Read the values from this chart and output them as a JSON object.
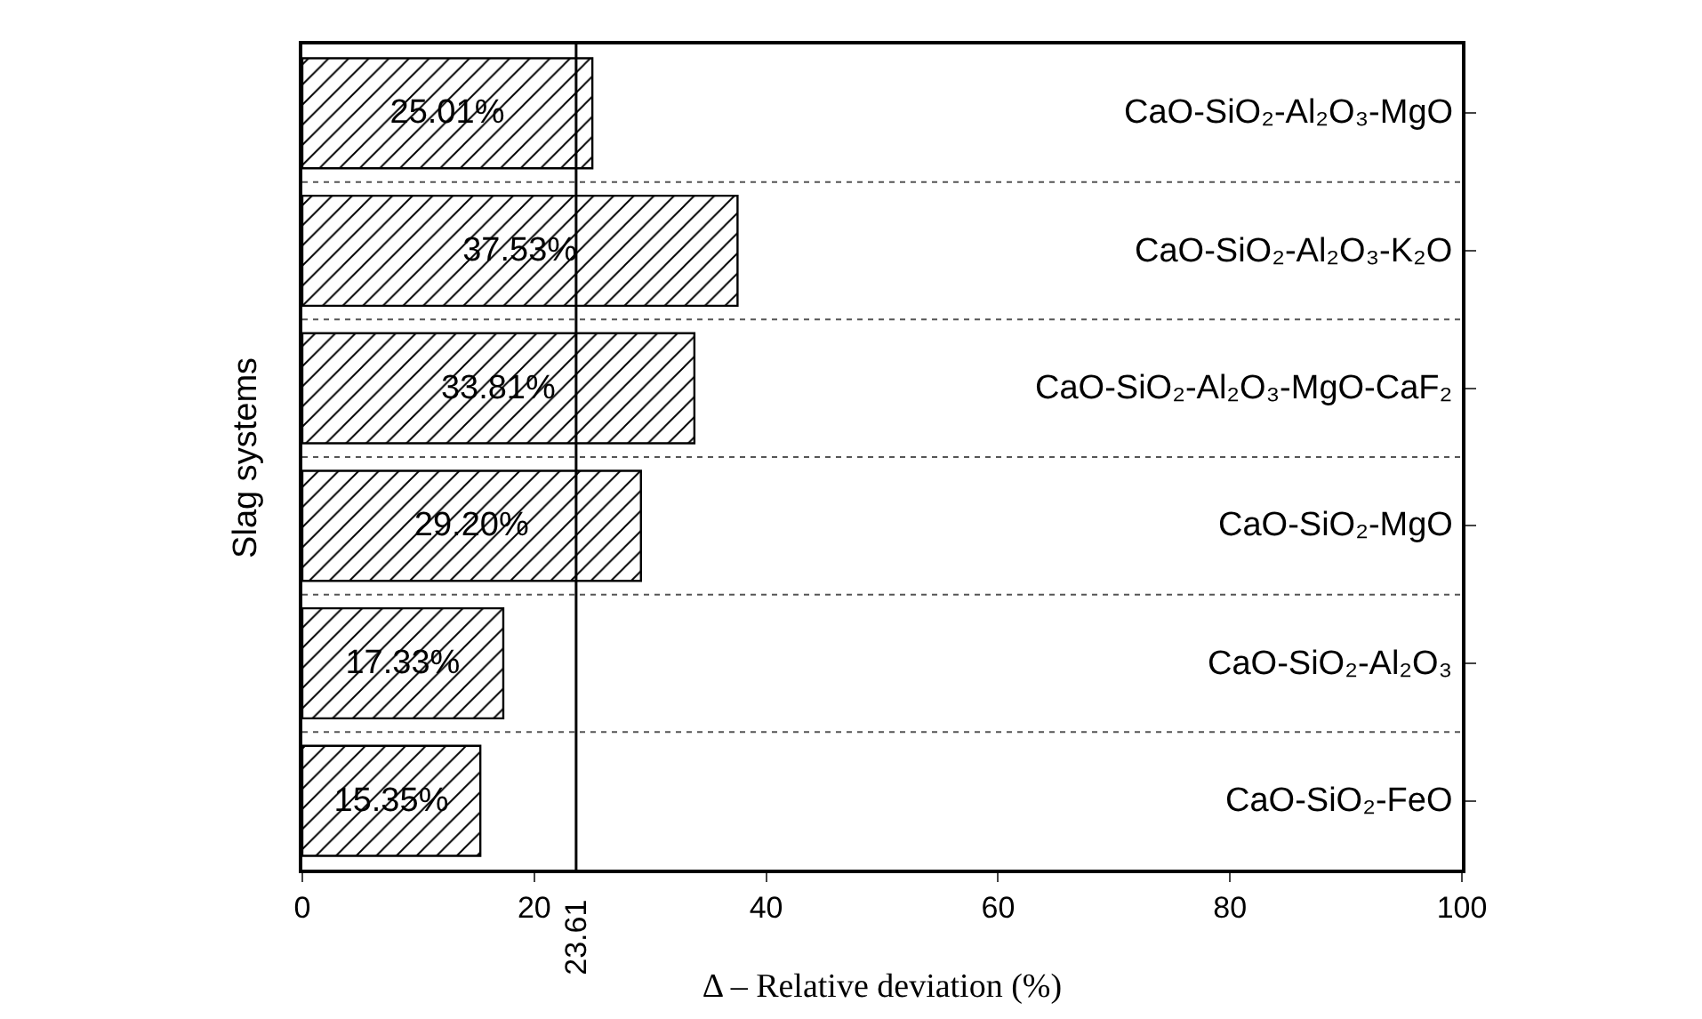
{
  "chart_data": {
    "type": "bar",
    "orientation": "horizontal",
    "xlabel": "Δ – Relative deviation (%)",
    "ylabel": "Slag systems",
    "categories": [
      "CaO-SiO₂-Al₂O₃-MgO",
      "CaO-SiO₂-Al₂O₃-K₂O",
      "CaO-SiO₂-Al₂O₃-MgO-CaF₂",
      "CaO-SiO₂-MgO",
      "CaO-SiO₂-Al₂O₃",
      "CaO-SiO₂-FeO"
    ],
    "values": [
      25.01,
      37.53,
      33.81,
      29.2,
      17.33,
      15.35
    ],
    "value_labels": [
      "25.01%",
      "37.53%",
      "33.81%",
      "29.20%",
      "17.33%",
      "15.35%"
    ],
    "color": "#000000",
    "xlim": [
      0,
      100
    ],
    "xticks": [
      0,
      20,
      40,
      60,
      80,
      100
    ],
    "ref_lines": [
      {
        "axis": "x",
        "value": 23.61,
        "label": "23.61",
        "color": "#000000",
        "line_style": "solid"
      }
    ],
    "grid": "y"
  }
}
